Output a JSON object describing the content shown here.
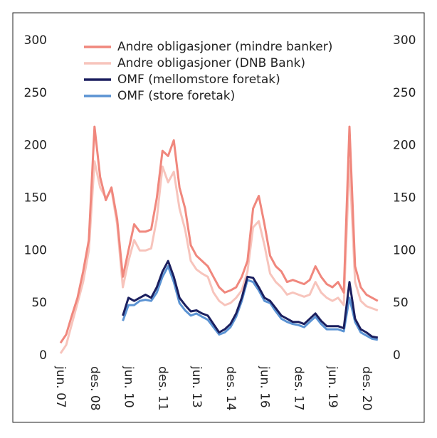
{
  "chart_data": {
    "type": "line",
    "categories": [
      "jun. 07",
      null,
      null,
      null,
      null,
      null,
      "des. 08",
      null,
      null,
      null,
      null,
      null,
      "jun. 10",
      null,
      null,
      null,
      null,
      null,
      "des. 11",
      null,
      null,
      null,
      null,
      null,
      "jun. 13",
      null,
      null,
      null,
      null,
      null,
      "des. 14",
      null,
      null,
      null,
      null,
      null,
      "jun. 16",
      null,
      null,
      null,
      null,
      null,
      "des. 17",
      null,
      null,
      null,
      null,
      null,
      "jun. 19",
      null,
      null,
      null,
      null,
      null,
      "des. 20",
      null,
      null
    ],
    "series": [
      {
        "name": "Andre obligasjoner (mindre banker)",
        "color": "#f0877d",
        "values": [
          12,
          20,
          38,
          55,
          80,
          110,
          218,
          170,
          148,
          160,
          130,
          75,
          100,
          125,
          118,
          118,
          120,
          150,
          195,
          190,
          205,
          160,
          140,
          105,
          95,
          90,
          85,
          75,
          65,
          60,
          62,
          65,
          75,
          90,
          140,
          152,
          125,
          95,
          85,
          80,
          70,
          72,
          70,
          68,
          72,
          85,
          75,
          68,
          65,
          70,
          60,
          218,
          85,
          65,
          58,
          55,
          52
        ]
      },
      {
        "name": "Andre obligasjoner (DNB Bank)",
        "color": "#f7c4bc",
        "values": [
          2,
          10,
          30,
          50,
          70,
          100,
          185,
          160,
          150,
          158,
          125,
          65,
          90,
          110,
          100,
          100,
          102,
          130,
          180,
          165,
          175,
          140,
          120,
          90,
          82,
          78,
          75,
          60,
          52,
          48,
          50,
          55,
          62,
          80,
          122,
          128,
          105,
          78,
          70,
          65,
          58,
          60,
          58,
          56,
          58,
          70,
          60,
          55,
          52,
          55,
          48,
          185,
          70,
          52,
          47,
          45,
          43
        ]
      },
      {
        "name": "OMF (mellomstore foretak)",
        "color": "#1b1f5f",
        "values": [
          null,
          null,
          null,
          null,
          null,
          null,
          null,
          null,
          null,
          null,
          null,
          38,
          55,
          52,
          55,
          58,
          55,
          65,
          80,
          90,
          75,
          55,
          48,
          42,
          43,
          40,
          38,
          30,
          22,
          25,
          30,
          40,
          55,
          75,
          74,
          65,
          55,
          52,
          45,
          38,
          35,
          32,
          32,
          30,
          35,
          40,
          33,
          28,
          28,
          28,
          26,
          70,
          35,
          25,
          22,
          18,
          17
        ]
      },
      {
        "name": "OMF (store foretak)",
        "color": "#5b93d3",
        "values": [
          null,
          null,
          null,
          null,
          null,
          null,
          null,
          null,
          null,
          null,
          null,
          33,
          48,
          48,
          52,
          53,
          52,
          60,
          75,
          85,
          70,
          50,
          43,
          38,
          40,
          37,
          34,
          27,
          20,
          22,
          27,
          37,
          52,
          72,
          70,
          62,
          52,
          50,
          42,
          35,
          32,
          30,
          29,
          27,
          32,
          37,
          30,
          25,
          25,
          25,
          23,
          55,
          32,
          22,
          19,
          16,
          15
        ]
      }
    ],
    "ylim": [
      0,
      300
    ],
    "yticks": [
      0,
      50,
      100,
      150,
      200,
      250,
      300
    ],
    "y2lim": [
      0,
      300
    ],
    "y2ticks": [
      0,
      50,
      100,
      150,
      200,
      250,
      300
    ],
    "legend": "top"
  }
}
